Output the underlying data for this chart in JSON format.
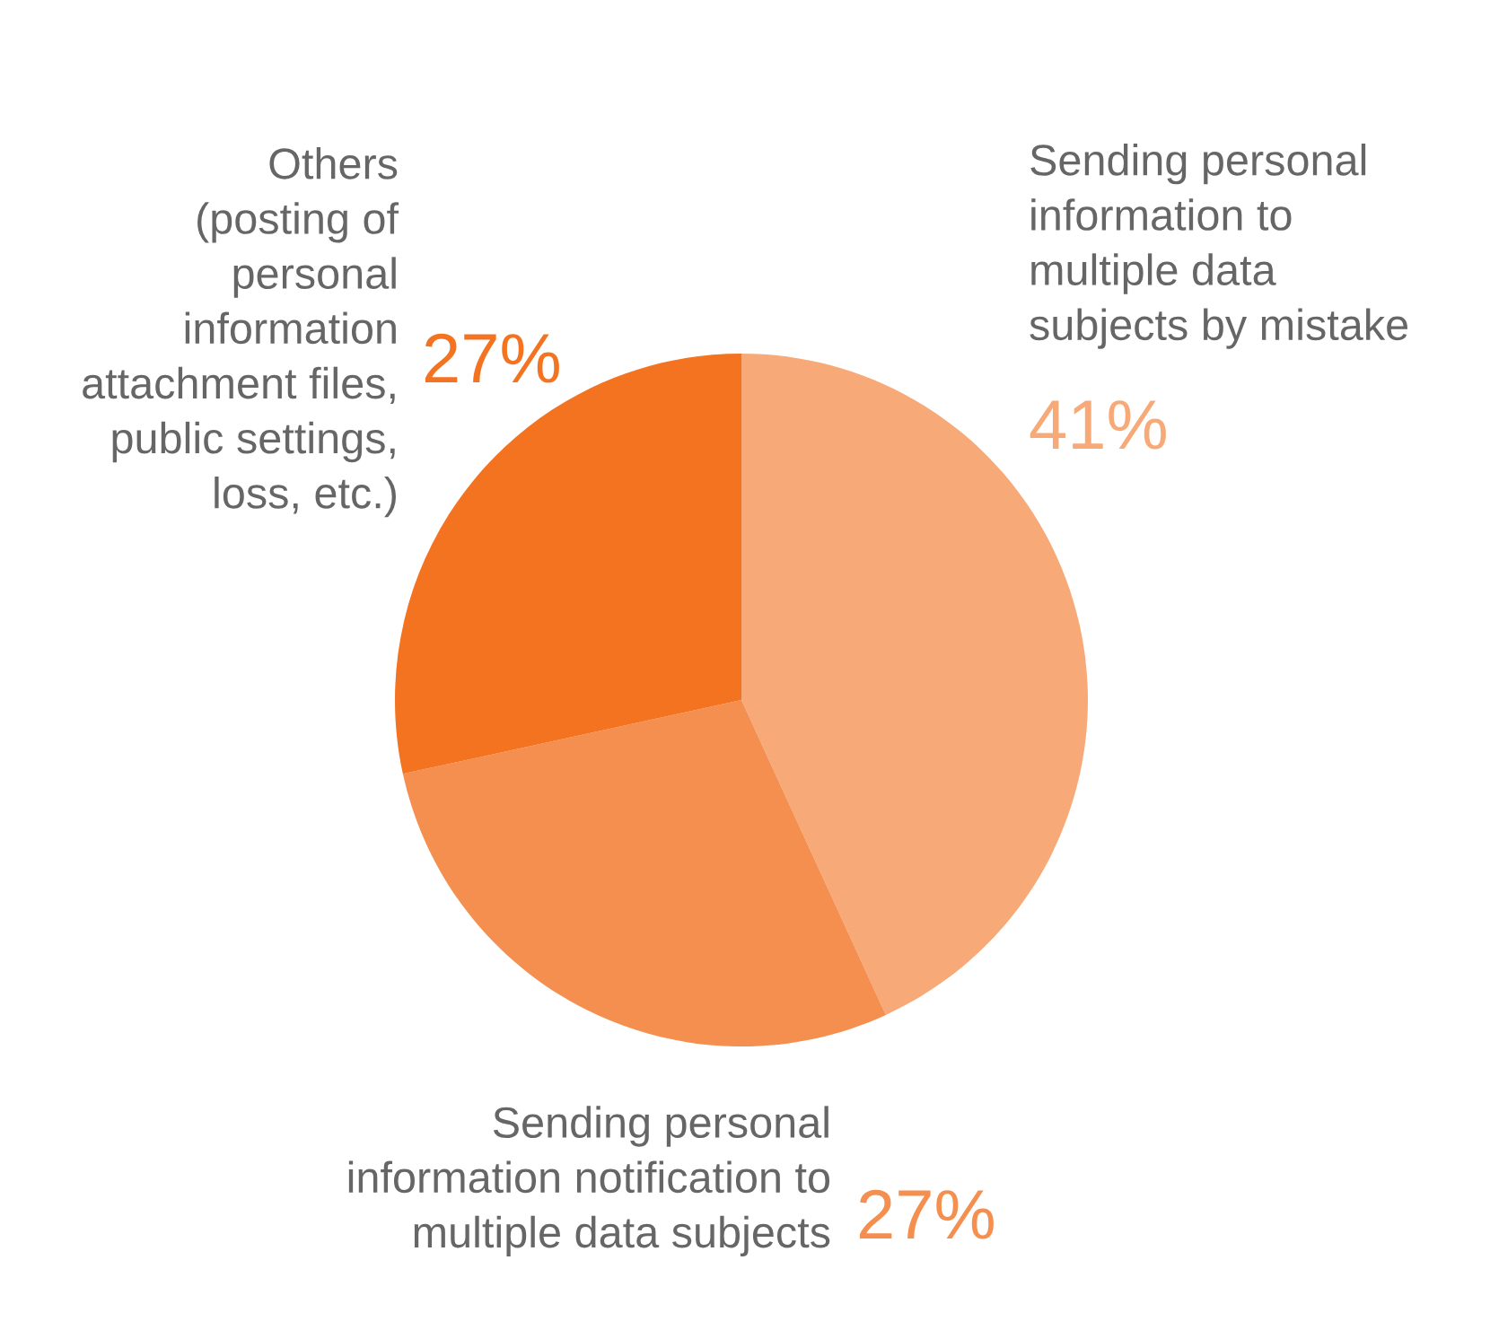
{
  "chart_data": {
    "type": "pie",
    "categories": [
      "Sending personal\ninformation to\nmultiple data\nsubjects by mistake",
      "Sending personal\ninformation notification to\nmultiple data subjects",
      "Others\n(posting of\npersonal\ninformation\nattachment files,\npublic settings,\nloss, etc.)"
    ],
    "values": [
      41,
      27,
      27
    ],
    "colors": [
      "#f7a978",
      "#f48f50",
      "#f37321"
    ],
    "value_labels": [
      "41%",
      "27%",
      "27%"
    ]
  }
}
